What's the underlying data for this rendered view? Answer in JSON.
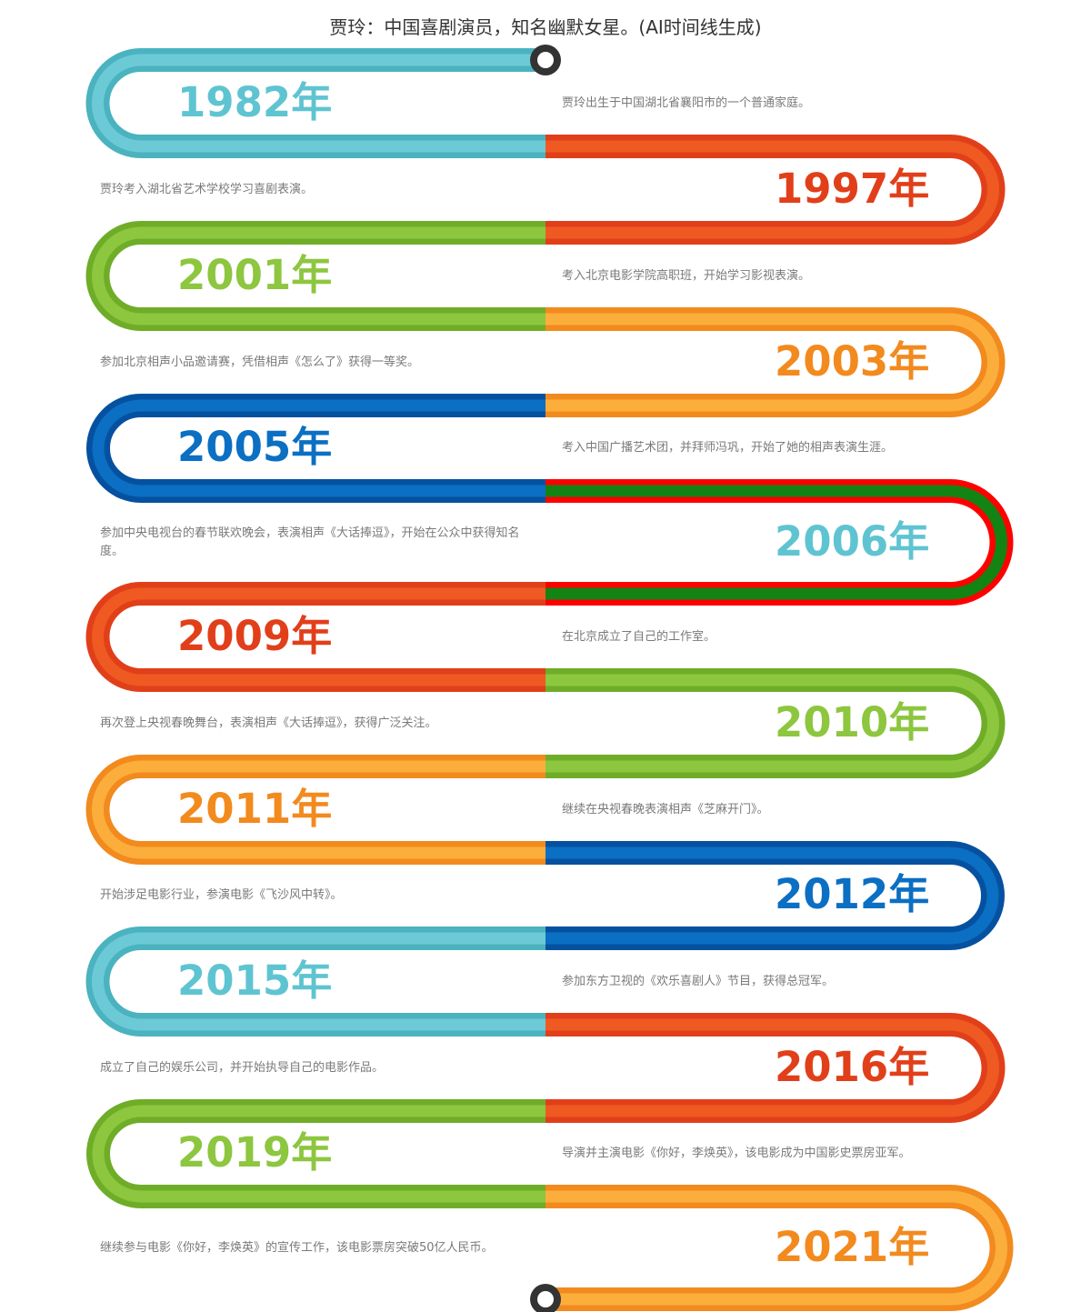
{
  "title": "贾玲：中国喜剧演员，知名幽默女星。(AI时间线生成)",
  "palette": {
    "teal": {
      "outer": "#4ab3bf",
      "inner": "#6ccad6",
      "text": "#5fc4d1"
    },
    "red": {
      "outer": "#e13f1a",
      "inner": "#ee5a22",
      "text": "#e13f1a"
    },
    "green": {
      "outer": "#6fad28",
      "inner": "#8dc63f",
      "text": "#8dc63f"
    },
    "orange": {
      "outer": "#f28a1e",
      "inner": "#fbae3c",
      "text": "#f28a1e"
    },
    "blue": {
      "outer": "#0551a0",
      "inner": "#0b6fc3",
      "text": "#0b6fc3"
    },
    "redgreen": {
      "outer": "#ff0000",
      "inner": "#138313",
      "text": "#5fc4d1"
    }
  },
  "events": [
    {
      "year": "1982年",
      "color": "teal",
      "text": "贾玲出生于中国湖北省襄阳市的一个普通家庭。"
    },
    {
      "year": "1997年",
      "color": "red",
      "text": "贾玲考入湖北省艺术学校学习喜剧表演。"
    },
    {
      "year": "2001年",
      "color": "green",
      "text": "考入北京电影学院高职班，开始学习影视表演。"
    },
    {
      "year": "2003年",
      "color": "orange",
      "text": "参加北京相声小品邀请赛，凭借相声《怎么了》获得一等奖。"
    },
    {
      "year": "2005年",
      "color": "blue",
      "text": "考入中国广播艺术团，并拜师冯巩，开始了她的相声表演生涯。"
    },
    {
      "year": "2006年",
      "color": "redgreen",
      "text": "参加中央电视台的春节联欢晚会，表演相声《大话捧逗》，开始在公众中获得知名度。"
    },
    {
      "year": "2009年",
      "color": "red",
      "text": "在北京成立了自己的工作室。"
    },
    {
      "year": "2010年",
      "color": "green",
      "text": "再次登上央视春晚舞台，表演相声《大话捧逗》，获得广泛关注。"
    },
    {
      "year": "2011年",
      "color": "orange",
      "text": "继续在央视春晚表演相声《芝麻开门》。"
    },
    {
      "year": "2012年",
      "color": "blue",
      "text": "开始涉足电影行业，参演电影《飞沙风中转》。"
    },
    {
      "year": "2015年",
      "color": "teal",
      "text": "参加东方卫视的《欢乐喜剧人》节目，获得总冠军。"
    },
    {
      "year": "2016年",
      "color": "red",
      "text": "成立了自己的娱乐公司，并开始执导自己的电影作品。"
    },
    {
      "year": "2019年",
      "color": "green",
      "text": "导演并主演电影《你好，李焕英》，该电影成为中国影史票房亚军。"
    },
    {
      "year": "2021年",
      "color": "orange",
      "text": "继续参与电影《你好，李焕英》的宣传工作，该电影票房突破50亿人民币。"
    }
  ]
}
